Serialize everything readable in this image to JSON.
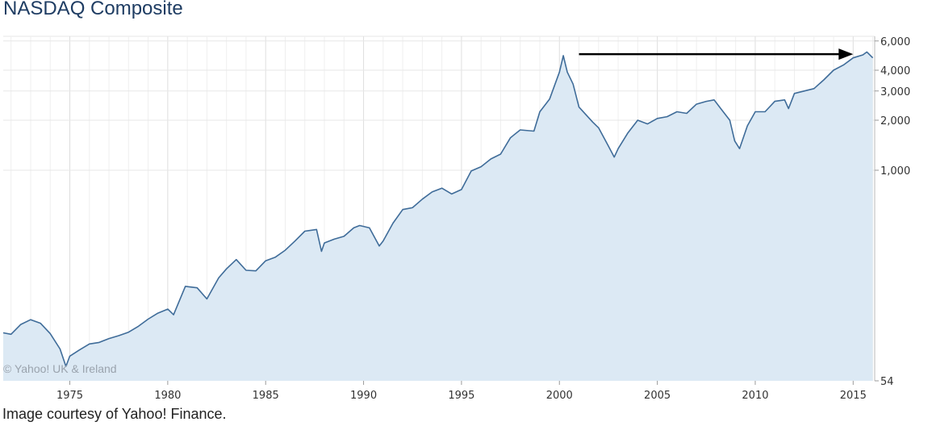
{
  "title": "NASDAQ Composite",
  "caption": "Image courtesy of Yahoo! Finance.",
  "watermark": "© Yahoo! UK & Ireland",
  "chart_data": {
    "type": "area",
    "title": "NASDAQ Composite",
    "xlabel": "",
    "ylabel": "",
    "yscale": "log",
    "xlim": [
      1971.6,
      2016.1
    ],
    "ylim": [
      54,
      6400
    ],
    "x_ticks": [
      "1975",
      "1980",
      "1985",
      "1990",
      "1995",
      "2000",
      "2005",
      "2010",
      "2015"
    ],
    "y_ticks": [
      "6,000",
      "4,000",
      "3,000",
      "2,000",
      "1,000",
      "54"
    ],
    "grid": true,
    "colors": {
      "line": "#3f6c99",
      "fill": "#dce9f4",
      "grid": "#e7e7e7",
      "arrow": "#000000"
    },
    "series": [
      {
        "x": [
          1971.6,
          1972.0,
          1972.5,
          1973.0,
          1973.5,
          1974.0,
          1974.5,
          1974.8,
          1975.0,
          1975.5,
          1976.0,
          1976.5,
          1977.0,
          1977.5,
          1978.0,
          1978.5,
          1979.0,
          1979.5,
          1980.0,
          1980.3,
          1980.9,
          1981.5,
          1982.0,
          1982.6,
          1983.0,
          1983.5,
          1984.0,
          1984.5,
          1985.0,
          1985.5,
          1986.0,
          1986.5,
          1987.0,
          1987.6,
          1987.85,
          1988.0,
          1988.5,
          1989.0,
          1989.5,
          1989.8,
          1990.3,
          1990.8,
          1991.0,
          1991.5,
          1992.0,
          1992.5,
          1993.0,
          1993.5,
          1994.0,
          1994.5,
          1995.0,
          1995.5,
          1996.0,
          1996.5,
          1997.0,
          1997.5,
          1998.0,
          1998.7,
          1999.0,
          1999.5,
          2000.0,
          2000.2,
          2000.4,
          2000.7,
          2001.0,
          2001.7,
          2002.0,
          2002.5,
          2002.8,
          2003.0,
          2003.5,
          2004.0,
          2004.5,
          2005.0,
          2005.5,
          2006.0,
          2006.5,
          2007.0,
          2007.5,
          2007.9,
          2008.3,
          2008.7,
          2008.95,
          2009.2,
          2009.6,
          2010.0,
          2010.5,
          2011.0,
          2011.5,
          2011.7,
          2012.0,
          2012.5,
          2013.0,
          2013.5,
          2014.0,
          2014.5,
          2015.0,
          2015.5,
          2015.7,
          2016.0
        ],
        "y": [
          105,
          103,
          118,
          126,
          120,
          104,
          84,
          66,
          76,
          83,
          90,
          92,
          97,
          101,
          106,
          115,
          127,
          138,
          146,
          135,
          200,
          196,
          168,
          225,
          255,
          290,
          250,
          248,
          285,
          300,
          330,
          375,
          430,
          440,
          325,
          365,
          385,
          400,
          450,
          465,
          450,
          350,
          375,
          480,
          580,
          595,
          670,
          740,
          780,
          720,
          765,
          990,
          1050,
          1170,
          1250,
          1570,
          1750,
          1720,
          2250,
          2680,
          3900,
          4900,
          3900,
          3300,
          2400,
          1950,
          1800,
          1400,
          1200,
          1350,
          1680,
          2000,
          1900,
          2050,
          2100,
          2250,
          2200,
          2500,
          2600,
          2650,
          2300,
          2000,
          1500,
          1350,
          1850,
          2250,
          2250,
          2600,
          2650,
          2350,
          2900,
          3000,
          3100,
          3500,
          4000,
          4300,
          4750,
          4950,
          5150,
          4750
        ]
      }
    ],
    "annotation": {
      "type": "arrow",
      "from": [
        2001.0,
        5000
      ],
      "to": [
        2015.0,
        5000
      ]
    }
  }
}
